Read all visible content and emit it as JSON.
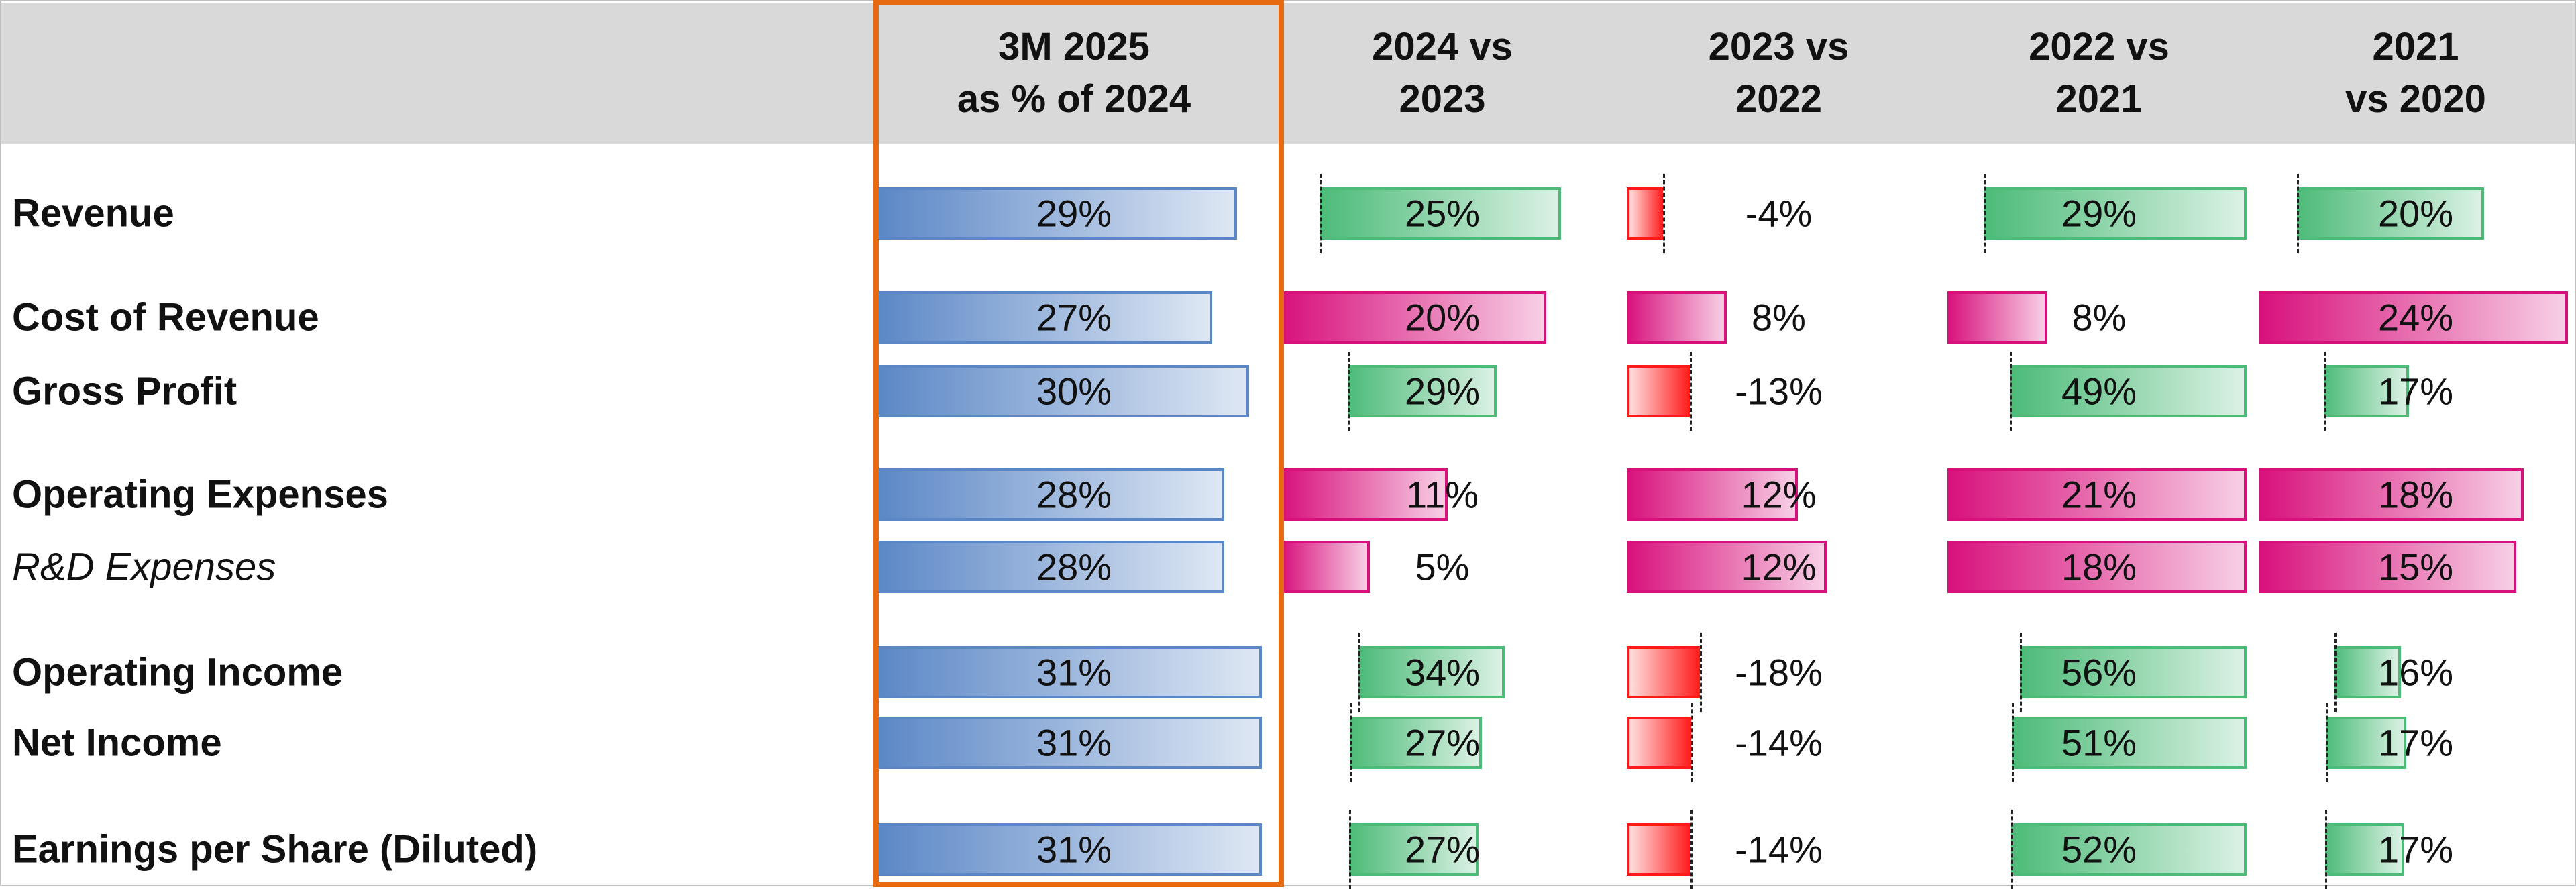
{
  "chart_data": {
    "type": "table",
    "columns": [
      {
        "line1": "3M 2025",
        "line2": "as % of 2024"
      },
      {
        "line1": "2024 vs",
        "line2": "2023"
      },
      {
        "line1": "2023 vs",
        "line2": "2022"
      },
      {
        "line1": "2022 vs",
        "line2": "2021"
      },
      {
        "line1": "2021",
        "line2": "vs 2020"
      }
    ],
    "rows": [
      {
        "label": "Revenue",
        "kind": "profit",
        "italic": false,
        "share": 29,
        "growth": [
          25,
          -4,
          29,
          20
        ]
      },
      {
        "label": "Cost of Revenue",
        "kind": "cost",
        "italic": false,
        "share": 27,
        "growth": [
          20,
          8,
          8,
          24
        ]
      },
      {
        "label": "Gross Profit",
        "kind": "profit",
        "italic": false,
        "share": 30,
        "growth": [
          29,
          -13,
          49,
          17
        ]
      },
      {
        "label": "Operating Expenses",
        "kind": "cost",
        "italic": false,
        "share": 28,
        "growth": [
          11,
          12,
          21,
          18
        ]
      },
      {
        "label": "R&D Expenses",
        "kind": "cost",
        "italic": true,
        "share": 28,
        "growth": [
          5,
          12,
          18,
          15
        ]
      },
      {
        "label": "Operating Income",
        "kind": "profit",
        "italic": false,
        "share": 31,
        "growth": [
          34,
          -18,
          56,
          16
        ]
      },
      {
        "label": "Net Income",
        "kind": "profit",
        "italic": false,
        "share": 31,
        "growth": [
          27,
          -14,
          51,
          17
        ]
      },
      {
        "label": "Earnings per Share (Diluted)",
        "kind": "profit",
        "italic": false,
        "share": 31,
        "growth": [
          27,
          -14,
          52,
          17
        ]
      }
    ],
    "unit": "%",
    "highlighted_column": "3M 2025 as % of 2024",
    "colors": {
      "share": "#5b87c6",
      "positive_profit": "#4cbb78",
      "positive_cost": "#d8107c",
      "negative": "#ff1a1a",
      "highlight_border": "#e86a10",
      "header_bg": "#d9d9d9"
    }
  }
}
